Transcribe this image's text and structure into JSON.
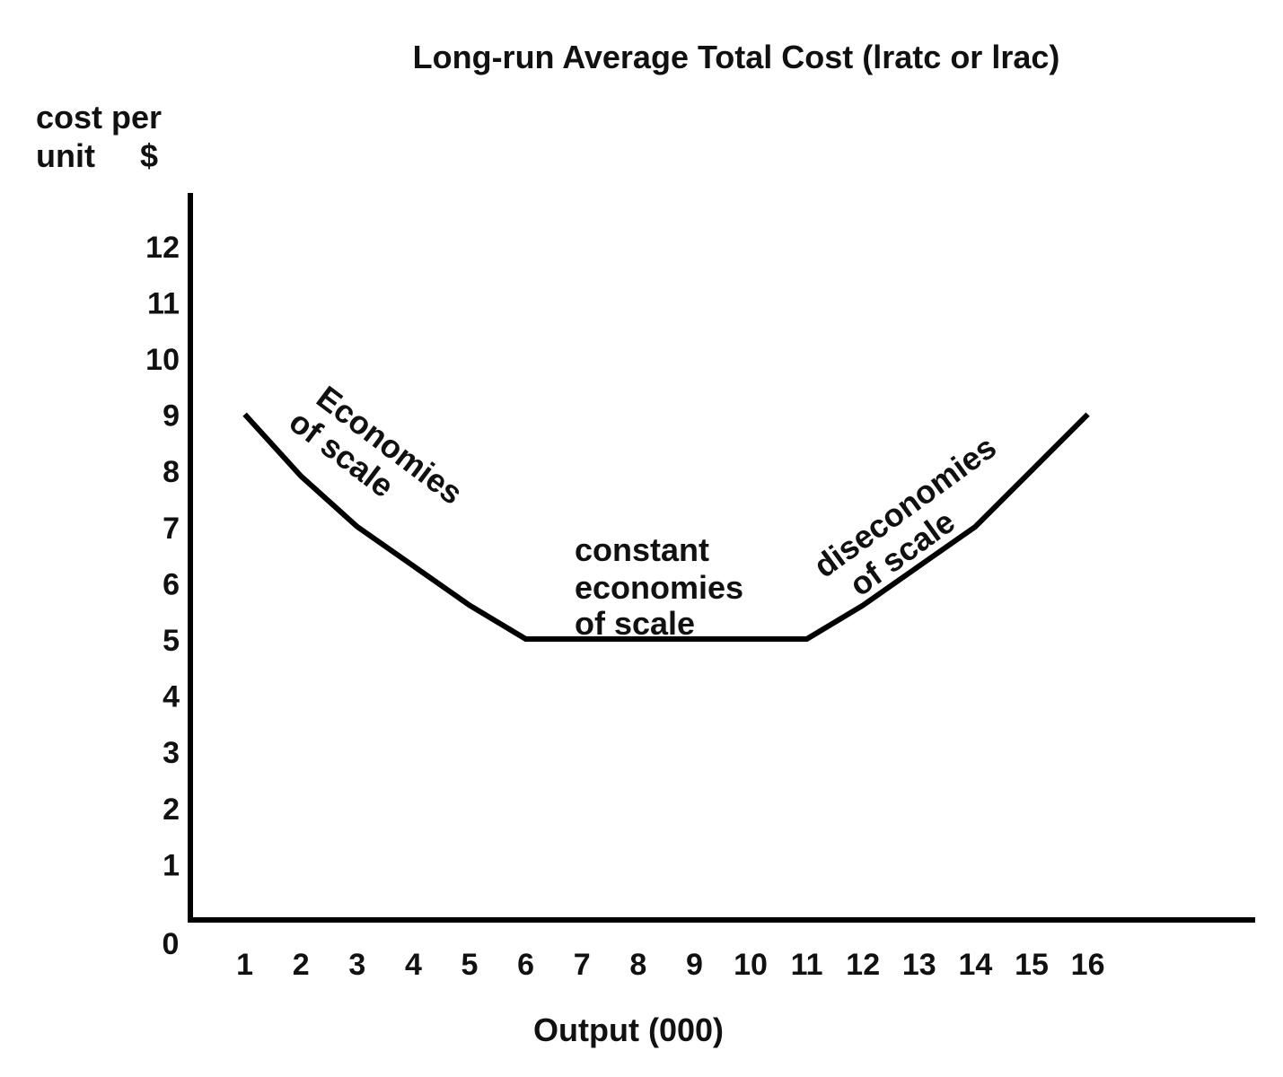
{
  "chart_data": {
    "type": "line",
    "title": "Long-run Average Total Cost (lratc or lrac)",
    "xlabel": "Output (000)",
    "ylabel": [
      "cost per",
      "unit      $"
    ],
    "xlim": [
      0,
      19
    ],
    "ylim": [
      0,
      13
    ],
    "origin_label": "0",
    "x_ticks": [
      "1",
      "2",
      "3",
      "4",
      "5",
      "6",
      "7",
      "8",
      "9",
      "10",
      "11",
      "12",
      "13",
      "14",
      "15",
      "16"
    ],
    "y_ticks": [
      "1",
      "2",
      "3",
      "4",
      "5",
      "6",
      "7",
      "8",
      "9",
      "10",
      "11",
      "12"
    ],
    "grid": false,
    "series": [
      {
        "x": [
          1,
          2,
          3,
          4,
          5,
          6,
          11,
          12,
          13,
          14,
          15,
          16
        ],
        "y": [
          9,
          7.9,
          7,
          6.3,
          5.6,
          5,
          5,
          5.6,
          6.3,
          7,
          8,
          9
        ]
      }
    ],
    "annotations": {
      "economies": [
        "Economies",
        "of scale"
      ],
      "constant": [
        "constant",
        "economies",
        "of scale"
      ],
      "diseconomies": [
        "diseconomies",
        "of scale"
      ]
    },
    "line_color": "#000000"
  }
}
